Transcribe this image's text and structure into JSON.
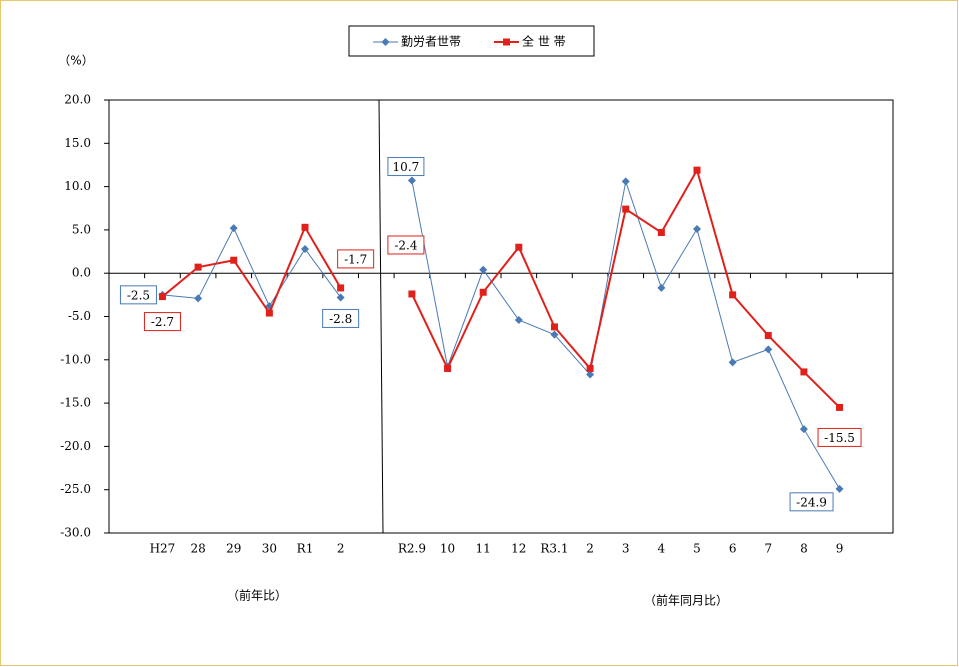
{
  "chart_data": {
    "type": "line",
    "unit_label": "（%）",
    "categories": [
      null,
      "H27",
      "28",
      "29",
      "30",
      "R1",
      "2",
      null,
      "R2.9",
      "10",
      "11",
      "12",
      "R3.1",
      "2",
      "3",
      "4",
      "5",
      "6",
      "7",
      "8",
      "9",
      null
    ],
    "series": [
      {
        "name": "勤労者世帯",
        "color": "#4a7ab5",
        "marker": "diamond",
        "values": [
          null,
          -2.5,
          -2.9,
          5.2,
          -3.8,
          2.8,
          -2.8,
          null,
          10.7,
          -10.8,
          0.4,
          -5.4,
          -7.1,
          -11.7,
          10.6,
          -1.7,
          5.1,
          -10.3,
          -8.8,
          -18.0,
          -24.9,
          null
        ],
        "value_labels": [
          null,
          "-2.5",
          null,
          null,
          null,
          null,
          "-2.8",
          null,
          "10.7",
          null,
          null,
          null,
          null,
          null,
          null,
          null,
          null,
          null,
          null,
          null,
          "-24.9",
          null
        ]
      },
      {
        "name": "全 世 帯",
        "color": "#e0201b",
        "marker": "square",
        "values": [
          null,
          -2.7,
          0.7,
          1.5,
          -4.6,
          5.3,
          -1.7,
          null,
          -2.4,
          -11.0,
          -2.2,
          3.0,
          -6.2,
          -11.0,
          7.4,
          4.7,
          11.9,
          -2.5,
          -7.2,
          -11.4,
          -15.5,
          null
        ],
        "value_labels": [
          null,
          "-2.7",
          null,
          null,
          null,
          null,
          "-1.7",
          null,
          "-2.4",
          null,
          null,
          null,
          null,
          null,
          null,
          null,
          null,
          null,
          null,
          null,
          "-15.5",
          null
        ]
      }
    ],
    "ylim": [
      -30,
      20
    ],
    "yticks": [
      {
        "value": -30,
        "label": "-30.0"
      },
      {
        "value": -25,
        "label": "-25.0"
      },
      {
        "value": -20,
        "label": "-20.0"
      },
      {
        "value": -15,
        "label": "-15.0"
      },
      {
        "value": -10,
        "label": "-10.0"
      },
      {
        "value": -5,
        "label": "-5.0"
      },
      {
        "value": 0,
        "label": "0.0"
      },
      {
        "value": 5,
        "label": "5.0"
      },
      {
        "value": 10,
        "label": "10.0"
      },
      {
        "value": 15,
        "label": "15.0"
      },
      {
        "value": 20,
        "label": "20.0"
      }
    ],
    "section_labels": [
      "（前年比）",
      "（前年同月比）"
    ],
    "grid": false,
    "legend": "top"
  }
}
